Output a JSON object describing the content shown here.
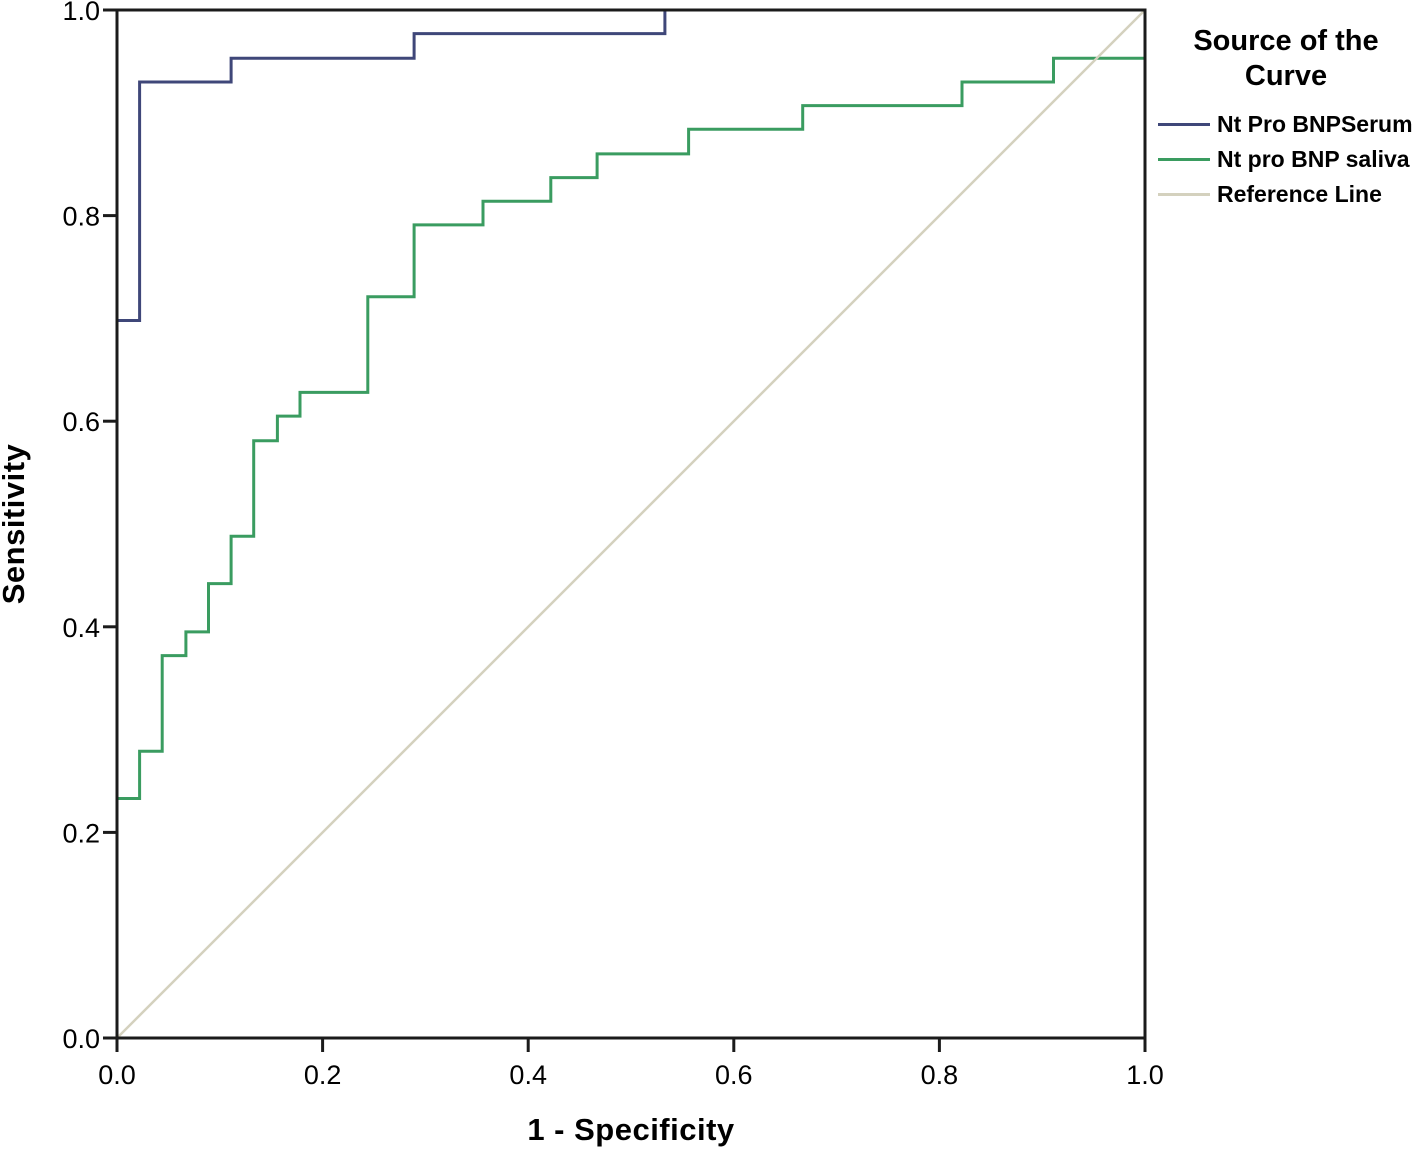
{
  "chart_data": {
    "type": "line",
    "subtype": "roc-step-curves",
    "title": "",
    "xlabel": "1 - Specificity",
    "ylabel": "Sensitivity",
    "xlim": [
      0.0,
      1.0
    ],
    "ylim": [
      0.0,
      1.0
    ],
    "grid": false,
    "frame": true,
    "xticks": [
      0.0,
      0.2,
      0.4,
      0.6,
      0.8,
      1.0
    ],
    "yticks": [
      0.0,
      0.2,
      0.4,
      0.6,
      0.8,
      1.0
    ],
    "xtick_labels": [
      "0.0",
      "0.2",
      "0.4",
      "0.6",
      "0.8",
      "1.0"
    ],
    "ytick_labels": [
      "0.0",
      "0.2",
      "0.4",
      "0.6",
      "0.8",
      "1.0"
    ],
    "colors": {
      "frame": "#1b1b1b",
      "tick": "#1b1b1b",
      "text": "#000000",
      "serum_line": "#3f4779",
      "saliva_line": "#3a9c60",
      "reference_line": "#d4d1be",
      "background": "#ffffff"
    },
    "legend": {
      "title": "Source of the Curve",
      "position": "right-top",
      "entries": [
        {
          "label": "Nt Pro BNPSerum",
          "color": "#3f4779"
        },
        {
          "label": "Nt pro BNP saliva",
          "color": "#3a9c60"
        },
        {
          "label": "Reference Line",
          "color": "#d4d1be"
        }
      ]
    },
    "series": [
      {
        "name": "Nt Pro BNPSerum",
        "color": "#3f4779",
        "stroke_width": 3,
        "points": [
          [
            0.0,
            0.0
          ],
          [
            0.0,
            0.698
          ],
          [
            0.022,
            0.698
          ],
          [
            0.022,
            0.93
          ],
          [
            0.111,
            0.93
          ],
          [
            0.111,
            0.953
          ],
          [
            0.289,
            0.953
          ],
          [
            0.289,
            0.977
          ],
          [
            0.533,
            0.977
          ],
          [
            0.533,
            1.0
          ],
          [
            1.0,
            1.0
          ]
        ]
      },
      {
        "name": "Nt pro BNP saliva",
        "color": "#3a9c60",
        "stroke_width": 3,
        "points": [
          [
            0.0,
            0.0
          ],
          [
            0.0,
            0.233
          ],
          [
            0.022,
            0.233
          ],
          [
            0.022,
            0.279
          ],
          [
            0.044,
            0.279
          ],
          [
            0.044,
            0.372
          ],
          [
            0.067,
            0.372
          ],
          [
            0.067,
            0.395
          ],
          [
            0.089,
            0.395
          ],
          [
            0.089,
            0.442
          ],
          [
            0.111,
            0.442
          ],
          [
            0.111,
            0.488
          ],
          [
            0.133,
            0.488
          ],
          [
            0.133,
            0.581
          ],
          [
            0.156,
            0.581
          ],
          [
            0.156,
            0.605
          ],
          [
            0.178,
            0.605
          ],
          [
            0.178,
            0.628
          ],
          [
            0.244,
            0.628
          ],
          [
            0.244,
            0.721
          ],
          [
            0.289,
            0.721
          ],
          [
            0.289,
            0.791
          ],
          [
            0.356,
            0.791
          ],
          [
            0.356,
            0.814
          ],
          [
            0.422,
            0.814
          ],
          [
            0.422,
            0.837
          ],
          [
            0.467,
            0.837
          ],
          [
            0.467,
            0.86
          ],
          [
            0.556,
            0.86
          ],
          [
            0.556,
            0.884
          ],
          [
            0.667,
            0.884
          ],
          [
            0.667,
            0.907
          ],
          [
            0.822,
            0.907
          ],
          [
            0.822,
            0.93
          ],
          [
            0.911,
            0.93
          ],
          [
            0.911,
            0.953
          ],
          [
            1.0,
            0.953
          ]
        ]
      },
      {
        "name": "Reference Line",
        "color": "#d4d1be",
        "stroke_width": 2.5,
        "points": [
          [
            0.0,
            0.0
          ],
          [
            1.0,
            1.0
          ]
        ]
      }
    ]
  }
}
